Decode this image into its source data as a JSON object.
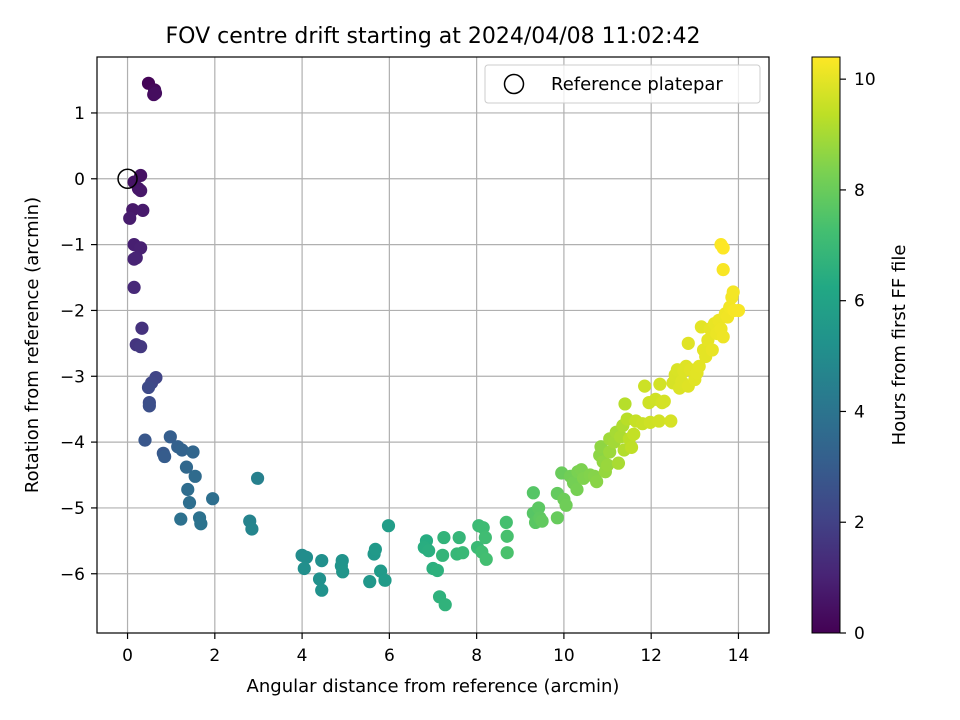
{
  "chart_data": {
    "type": "scatter",
    "title": "FOV centre drift starting at 2024/04/08 11:02:42",
    "xlabel": "Angular distance from reference (arcmin)",
    "ylabel": "Rotation from reference (arcmin)",
    "xlim": [
      -0.7,
      14.7
    ],
    "ylim": [
      -6.9,
      1.85
    ],
    "xticks": [
      0,
      2,
      4,
      6,
      8,
      10,
      12,
      14
    ],
    "yticks": [
      1,
      0,
      -1,
      -2,
      -3,
      -4,
      -5,
      -6
    ],
    "grid": true,
    "legend": {
      "position": "top-right",
      "entries": [
        "Reference platepar"
      ]
    },
    "reference_point": {
      "x": 0,
      "y": 0
    },
    "colorbar": {
      "label": "Hours from first FF file",
      "min": 0,
      "max": 10.4,
      "ticks": [
        0,
        2,
        4,
        6,
        8,
        10
      ],
      "colormap": "viridis"
    },
    "points": [
      {
        "x": 0.48,
        "y": 1.45,
        "t": 0.1
      },
      {
        "x": 0.62,
        "y": 1.35,
        "t": 0.2
      },
      {
        "x": 0.6,
        "y": 1.28,
        "t": 0.3
      },
      {
        "x": 0.64,
        "y": 1.3,
        "t": 0.35
      },
      {
        "x": 0.3,
        "y": 0.05,
        "t": 0.5
      },
      {
        "x": 0.15,
        "y": -0.05,
        "t": 0.55
      },
      {
        "x": 0.25,
        "y": -0.15,
        "t": 0.6
      },
      {
        "x": 0.3,
        "y": -0.18,
        "t": 0.65
      },
      {
        "x": 0.12,
        "y": -0.47,
        "t": 0.7
      },
      {
        "x": 0.35,
        "y": -0.48,
        "t": 0.75
      },
      {
        "x": 0.05,
        "y": -0.6,
        "t": 0.8
      },
      {
        "x": 0.15,
        "y": -1.0,
        "t": 0.9
      },
      {
        "x": 0.3,
        "y": -1.05,
        "t": 0.95
      },
      {
        "x": 0.2,
        "y": -1.2,
        "t": 1.0
      },
      {
        "x": 0.15,
        "y": -1.22,
        "t": 1.05
      },
      {
        "x": 0.15,
        "y": -1.65,
        "t": 1.2
      },
      {
        "x": 0.33,
        "y": -2.27,
        "t": 1.5
      },
      {
        "x": 0.2,
        "y": -2.52,
        "t": 1.6
      },
      {
        "x": 0.3,
        "y": -2.55,
        "t": 1.7
      },
      {
        "x": 0.65,
        "y": -3.02,
        "t": 2.1
      },
      {
        "x": 0.55,
        "y": -3.1,
        "t": 2.2
      },
      {
        "x": 0.48,
        "y": -3.17,
        "t": 2.3
      },
      {
        "x": 0.5,
        "y": -3.4,
        "t": 2.4
      },
      {
        "x": 0.5,
        "y": -3.45,
        "t": 2.5
      },
      {
        "x": 0.4,
        "y": -3.97,
        "t": 2.8
      },
      {
        "x": 0.82,
        "y": -4.17,
        "t": 2.9
      },
      {
        "x": 0.85,
        "y": -4.22,
        "t": 3.0
      },
      {
        "x": 0.98,
        "y": -3.92,
        "t": 3.1
      },
      {
        "x": 1.15,
        "y": -4.07,
        "t": 3.2
      },
      {
        "x": 1.25,
        "y": -4.12,
        "t": 3.3
      },
      {
        "x": 1.5,
        "y": -4.15,
        "t": 3.4
      },
      {
        "x": 1.35,
        "y": -4.38,
        "t": 3.5
      },
      {
        "x": 1.55,
        "y": -4.52,
        "t": 3.6
      },
      {
        "x": 1.38,
        "y": -4.72,
        "t": 3.7
      },
      {
        "x": 1.42,
        "y": -4.92,
        "t": 3.75
      },
      {
        "x": 1.95,
        "y": -4.86,
        "t": 3.8
      },
      {
        "x": 1.22,
        "y": -5.17,
        "t": 3.85
      },
      {
        "x": 1.65,
        "y": -5.15,
        "t": 3.9
      },
      {
        "x": 1.68,
        "y": -5.24,
        "t": 3.95
      },
      {
        "x": 2.98,
        "y": -4.55,
        "t": 4.5
      },
      {
        "x": 2.8,
        "y": -5.2,
        "t": 4.6
      },
      {
        "x": 2.85,
        "y": -5.32,
        "t": 4.7
      },
      {
        "x": 4.0,
        "y": -5.72,
        "t": 5.0
      },
      {
        "x": 4.1,
        "y": -5.75,
        "t": 5.05
      },
      {
        "x": 4.05,
        "y": -5.92,
        "t": 5.1
      },
      {
        "x": 4.45,
        "y": -5.8,
        "t": 5.15
      },
      {
        "x": 4.4,
        "y": -6.08,
        "t": 5.2
      },
      {
        "x": 4.45,
        "y": -6.25,
        "t": 5.25
      },
      {
        "x": 4.92,
        "y": -5.8,
        "t": 5.3
      },
      {
        "x": 4.9,
        "y": -5.88,
        "t": 5.35
      },
      {
        "x": 4.93,
        "y": -5.97,
        "t": 5.4
      },
      {
        "x": 5.55,
        "y": -6.12,
        "t": 5.45
      },
      {
        "x": 5.65,
        "y": -5.7,
        "t": 5.5
      },
      {
        "x": 5.68,
        "y": -5.63,
        "t": 5.55
      },
      {
        "x": 5.8,
        "y": -5.96,
        "t": 5.6
      },
      {
        "x": 5.9,
        "y": -6.1,
        "t": 5.65
      },
      {
        "x": 5.98,
        "y": -5.27,
        "t": 5.75
      },
      {
        "x": 6.85,
        "y": -5.5,
        "t": 6.4
      },
      {
        "x": 6.8,
        "y": -5.6,
        "t": 6.45
      },
      {
        "x": 6.9,
        "y": -5.65,
        "t": 6.5
      },
      {
        "x": 7.0,
        "y": -5.92,
        "t": 6.55
      },
      {
        "x": 7.1,
        "y": -5.95,
        "t": 6.6
      },
      {
        "x": 7.15,
        "y": -6.35,
        "t": 6.65
      },
      {
        "x": 7.28,
        "y": -6.47,
        "t": 6.7
      },
      {
        "x": 7.25,
        "y": -5.45,
        "t": 6.75
      },
      {
        "x": 7.22,
        "y": -5.72,
        "t": 6.8
      },
      {
        "x": 7.6,
        "y": -5.45,
        "t": 6.85
      },
      {
        "x": 7.55,
        "y": -5.7,
        "t": 6.9
      },
      {
        "x": 7.68,
        "y": -5.68,
        "t": 6.95
      },
      {
        "x": 8.02,
        "y": -5.6,
        "t": 7.0
      },
      {
        "x": 8.05,
        "y": -5.27,
        "t": 7.05
      },
      {
        "x": 8.15,
        "y": -5.3,
        "t": 7.1
      },
      {
        "x": 8.2,
        "y": -5.45,
        "t": 7.15
      },
      {
        "x": 8.12,
        "y": -5.67,
        "t": 7.2
      },
      {
        "x": 8.22,
        "y": -5.78,
        "t": 7.25
      },
      {
        "x": 8.68,
        "y": -5.22,
        "t": 7.3
      },
      {
        "x": 8.7,
        "y": -5.43,
        "t": 7.35
      },
      {
        "x": 8.7,
        "y": -5.68,
        "t": 7.4
      },
      {
        "x": 9.3,
        "y": -4.77,
        "t": 7.6
      },
      {
        "x": 9.3,
        "y": -5.08,
        "t": 7.65
      },
      {
        "x": 9.35,
        "y": -5.22,
        "t": 7.7
      },
      {
        "x": 9.42,
        "y": -5.0,
        "t": 7.75
      },
      {
        "x": 9.45,
        "y": -5.15,
        "t": 7.8
      },
      {
        "x": 9.5,
        "y": -5.2,
        "t": 7.85
      },
      {
        "x": 9.85,
        "y": -4.78,
        "t": 7.9
      },
      {
        "x": 9.85,
        "y": -5.15,
        "t": 7.95
      },
      {
        "x": 9.95,
        "y": -4.47,
        "t": 8.0
      },
      {
        "x": 10.0,
        "y": -4.87,
        "t": 8.05
      },
      {
        "x": 10.05,
        "y": -4.96,
        "t": 8.1
      },
      {
        "x": 10.15,
        "y": -4.52,
        "t": 8.15
      },
      {
        "x": 10.22,
        "y": -4.62,
        "t": 8.2
      },
      {
        "x": 10.3,
        "y": -4.72,
        "t": 8.25
      },
      {
        "x": 10.32,
        "y": -4.45,
        "t": 8.3
      },
      {
        "x": 10.4,
        "y": -4.42,
        "t": 8.35
      },
      {
        "x": 10.45,
        "y": -4.55,
        "t": 8.4
      },
      {
        "x": 10.6,
        "y": -4.5,
        "t": 8.45
      },
      {
        "x": 10.7,
        "y": -4.52,
        "t": 8.5
      },
      {
        "x": 10.75,
        "y": -4.6,
        "t": 8.55
      },
      {
        "x": 10.82,
        "y": -4.2,
        "t": 8.6
      },
      {
        "x": 10.85,
        "y": -4.07,
        "t": 8.65
      },
      {
        "x": 10.9,
        "y": -4.3,
        "t": 8.7
      },
      {
        "x": 10.95,
        "y": -4.45,
        "t": 8.75
      },
      {
        "x": 11.0,
        "y": -4.35,
        "t": 8.8
      },
      {
        "x": 11.05,
        "y": -4.15,
        "t": 8.85
      },
      {
        "x": 11.05,
        "y": -3.95,
        "t": 8.9
      },
      {
        "x": 11.15,
        "y": -4.0,
        "t": 8.95
      },
      {
        "x": 11.2,
        "y": -3.85,
        "t": 9.0
      },
      {
        "x": 11.25,
        "y": -4.32,
        "t": 9.05
      },
      {
        "x": 11.3,
        "y": -3.92,
        "t": 9.1
      },
      {
        "x": 11.35,
        "y": -3.75,
        "t": 9.15
      },
      {
        "x": 11.38,
        "y": -4.12,
        "t": 9.2
      },
      {
        "x": 11.4,
        "y": -3.42,
        "t": 9.25
      },
      {
        "x": 11.45,
        "y": -3.65,
        "t": 9.3
      },
      {
        "x": 11.5,
        "y": -3.95,
        "t": 9.35
      },
      {
        "x": 11.55,
        "y": -4.08,
        "t": 9.4
      },
      {
        "x": 11.6,
        "y": -3.88,
        "t": 9.45
      },
      {
        "x": 11.65,
        "y": -3.68,
        "t": 9.5
      },
      {
        "x": 11.8,
        "y": -3.72,
        "t": 9.55
      },
      {
        "x": 11.85,
        "y": -3.15,
        "t": 9.6
      },
      {
        "x": 11.95,
        "y": -3.4,
        "t": 9.62
      },
      {
        "x": 11.98,
        "y": -3.7,
        "t": 9.64
      },
      {
        "x": 12.1,
        "y": -3.35,
        "t": 9.66
      },
      {
        "x": 12.18,
        "y": -3.68,
        "t": 9.68
      },
      {
        "x": 12.2,
        "y": -3.12,
        "t": 9.7
      },
      {
        "x": 12.25,
        "y": -3.4,
        "t": 9.72
      },
      {
        "x": 12.3,
        "y": -3.38,
        "t": 9.74
      },
      {
        "x": 12.45,
        "y": -3.68,
        "t": 9.76
      },
      {
        "x": 12.5,
        "y": -3.1,
        "t": 9.78
      },
      {
        "x": 12.55,
        "y": -2.98,
        "t": 9.8
      },
      {
        "x": 12.6,
        "y": -2.9,
        "t": 9.82
      },
      {
        "x": 12.65,
        "y": -3.18,
        "t": 9.84
      },
      {
        "x": 12.7,
        "y": -3.08,
        "t": 9.86
      },
      {
        "x": 12.75,
        "y": -2.92,
        "t": 9.88
      },
      {
        "x": 12.8,
        "y": -2.85,
        "t": 9.9
      },
      {
        "x": 12.85,
        "y": -3.15,
        "t": 9.92
      },
      {
        "x": 12.85,
        "y": -2.5,
        "t": 9.93
      },
      {
        "x": 12.9,
        "y": -2.9,
        "t": 9.94
      },
      {
        "x": 13.0,
        "y": -3.05,
        "t": 9.95
      },
      {
        "x": 13.05,
        "y": -2.95,
        "t": 9.96
      },
      {
        "x": 13.1,
        "y": -2.85,
        "t": 9.97
      },
      {
        "x": 13.15,
        "y": -2.25,
        "t": 9.98
      },
      {
        "x": 13.2,
        "y": -2.6,
        "t": 9.99
      },
      {
        "x": 13.25,
        "y": -2.7,
        "t": 10.0
      },
      {
        "x": 13.3,
        "y": -2.45,
        "t": 10.02
      },
      {
        "x": 13.35,
        "y": -2.28,
        "t": 10.04
      },
      {
        "x": 13.4,
        "y": -2.6,
        "t": 10.06
      },
      {
        "x": 13.45,
        "y": -2.2,
        "t": 10.08
      },
      {
        "x": 13.5,
        "y": -2.35,
        "t": 10.1
      },
      {
        "x": 13.55,
        "y": -2.15,
        "t": 10.12
      },
      {
        "x": 13.6,
        "y": -2.28,
        "t": 10.14
      },
      {
        "x": 13.65,
        "y": -2.4,
        "t": 10.16
      },
      {
        "x": 13.7,
        "y": -2.05,
        "t": 10.18
      },
      {
        "x": 13.75,
        "y": -2.1,
        "t": 10.2
      },
      {
        "x": 13.8,
        "y": -1.95,
        "t": 10.22
      },
      {
        "x": 13.85,
        "y": -1.8,
        "t": 10.24
      },
      {
        "x": 13.88,
        "y": -1.72,
        "t": 10.26
      },
      {
        "x": 13.9,
        "y": -2.0,
        "t": 10.28
      },
      {
        "x": 14.0,
        "y": -2.0,
        "t": 10.3
      },
      {
        "x": 13.65,
        "y": -1.38,
        "t": 10.32
      },
      {
        "x": 13.6,
        "y": -1.0,
        "t": 10.36
      },
      {
        "x": 13.65,
        "y": -1.05,
        "t": 10.4
      }
    ]
  }
}
